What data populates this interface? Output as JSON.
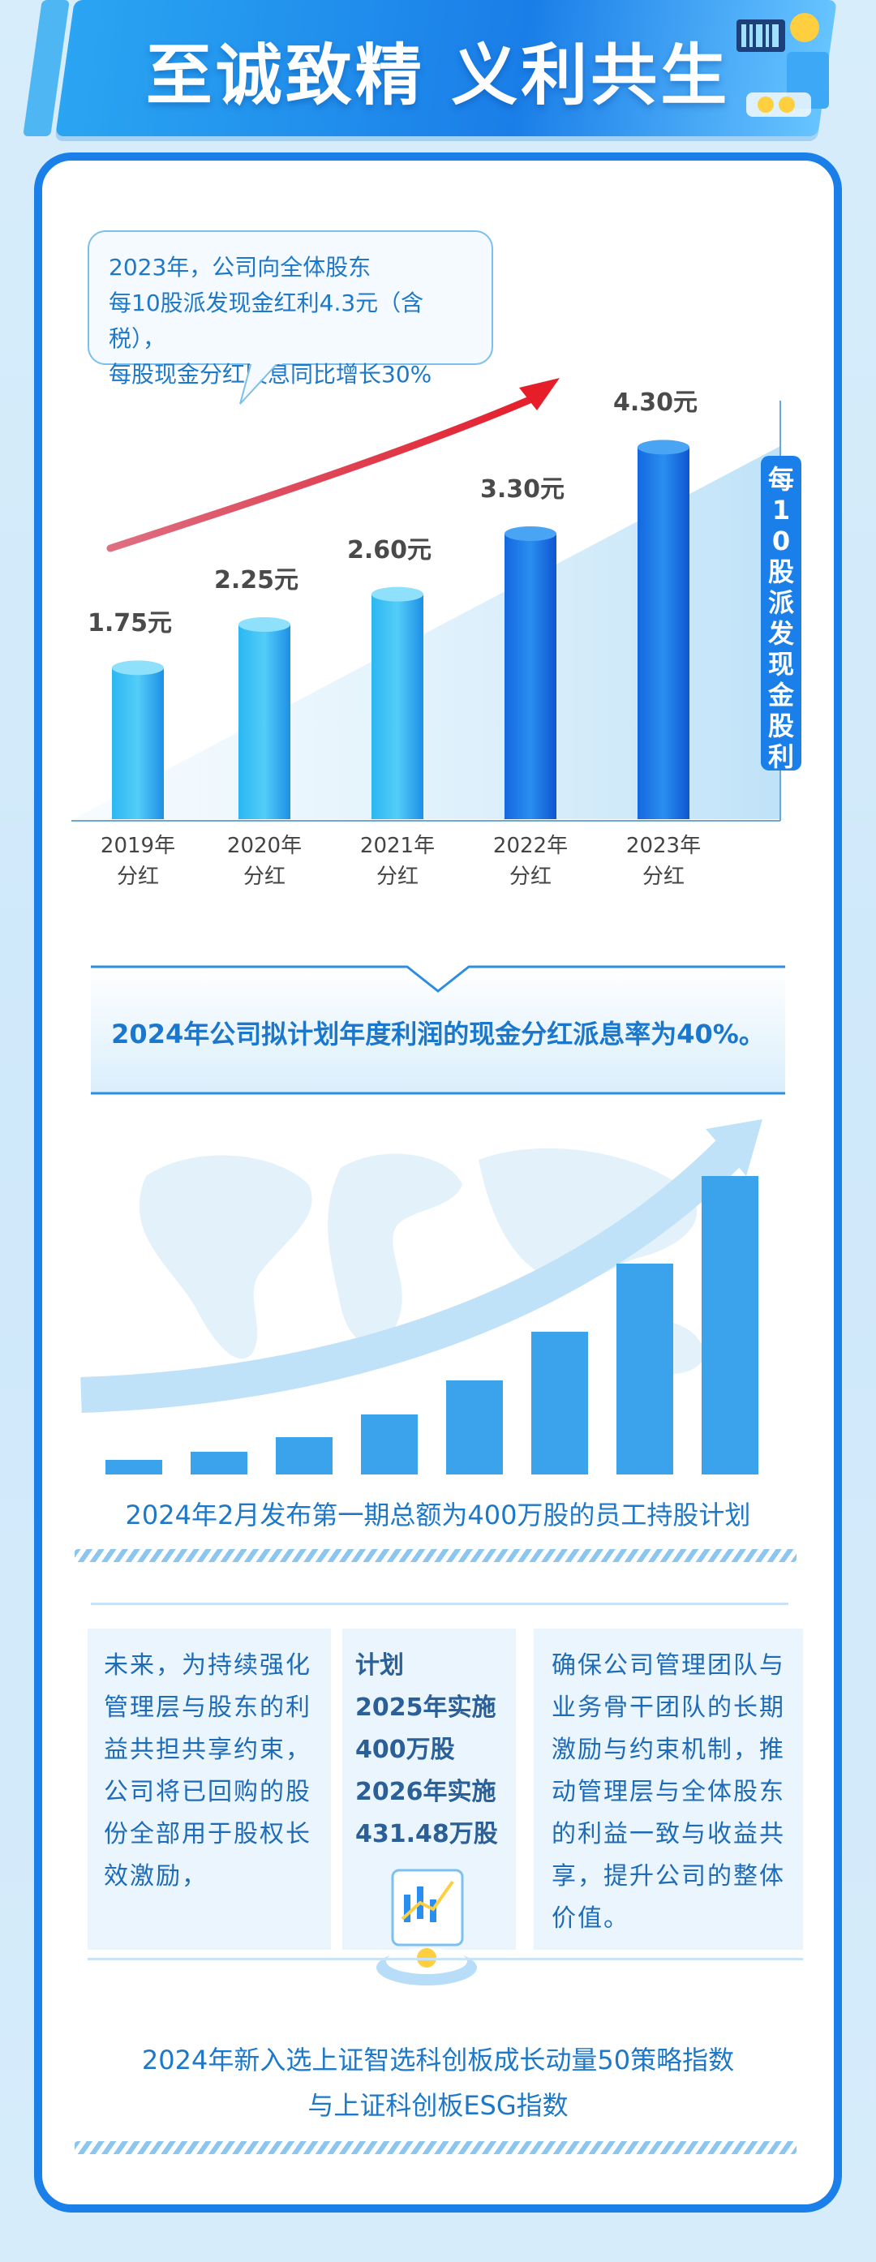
{
  "header": {
    "title": "至诚致精 义利共生"
  },
  "callout": {
    "lines": [
      "2023年，公司向全体股东",
      "每10股派发现金红利4.3元（含税），",
      "每股现金分红股息同比增长30%"
    ]
  },
  "chart_data": {
    "type": "bar",
    "categories": [
      "2019年\n分红",
      "2020年\n分红",
      "2021年\n分红",
      "2022年\n分红",
      "2023年\n分红"
    ],
    "values": [
      1.75,
      2.25,
      2.6,
      3.3,
      4.3
    ],
    "data_labels": [
      "1.75元",
      "2.25元",
      "2.60元",
      "3.30元",
      "4.30元"
    ],
    "ylabel": "每10股派发现金股利",
    "ylim": [
      0,
      4.5
    ],
    "grid": false,
    "colors": {
      "bar_light": "#4fc9f5",
      "bar_dark": "#1466e0"
    }
  },
  "banner": {
    "text": "2024年公司拟计划年度利润的现金分红派息率为40%。"
  },
  "esop": {
    "text": "2024年2月发布第一期总额为400万股的员工持股计划"
  },
  "columns": {
    "left": "未来，为持续强化管理层与股东的利益共担共享约束，公司将已回购的股份全部用于股权长效激励，",
    "mid": [
      "计划",
      "2025年实施",
      "400万股",
      "2026年实施",
      "431.48万股"
    ],
    "right": "确保公司管理团队与业务骨干团队的长期激励与约束机制，推动管理层与全体股东的利益一致与收益共享，提升公司的整体价值。"
  },
  "bottom": {
    "lines": [
      "2024年新入选上证智选科创板成长动量50策略指数",
      "与上证科创板ESG指数"
    ]
  }
}
